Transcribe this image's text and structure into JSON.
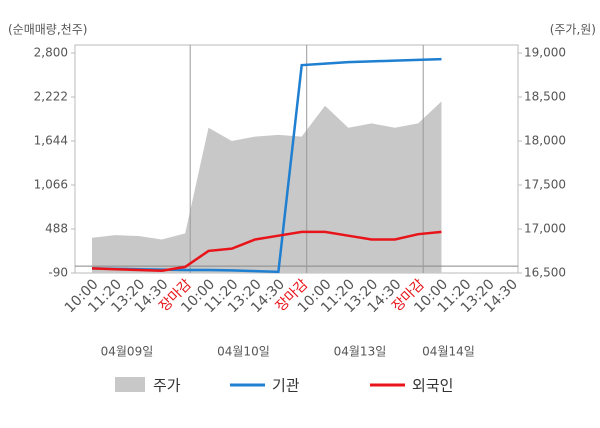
{
  "chart_data": {
    "type": "line",
    "y_label": "(순매매량,천주)",
    "y2_label": "(주가,원)",
    "categories": [
      "10:00",
      "11:20",
      "13:20",
      "14:30",
      "장마감",
      "10:00",
      "11:20",
      "13:20",
      "14:30",
      "장마감",
      "10:00",
      "11:20",
      "13:20",
      "14:30",
      "장마감",
      "10:00",
      "11:20",
      "13:20",
      "14:30"
    ],
    "dates": [
      "04월09일",
      "04월10일",
      "04월13일",
      "04월14일"
    ],
    "ylim": [
      -90,
      2800
    ],
    "yticks": [
      -90,
      488,
      {
        "value": 1066,
        "label": "1,066"
      },
      {
        "value": 1644,
        "label": "1,644"
      },
      {
        "value": 2222,
        "label": "2,222"
      },
      {
        "value": 2800,
        "label": "2,800"
      }
    ],
    "y2lim": [
      16500,
      19000
    ],
    "y2ticks": [
      {
        "value": 16500,
        "label": "16,500"
      },
      {
        "value": 17000,
        "label": "17,000"
      },
      {
        "value": 17500,
        "label": "17,500"
      },
      {
        "value": 18000,
        "label": "18,000"
      },
      {
        "value": 18500,
        "label": "18,500"
      },
      {
        "value": 19000,
        "label": "19,000"
      }
    ],
    "close_label_color": "#e8141a",
    "series": [
      {
        "name": "주가",
        "style": "area",
        "axis": "y2",
        "color": "#c8c8c8",
        "values": [
          16900,
          16930,
          16920,
          16880,
          16950,
          18150,
          18000,
          18050,
          18070,
          18050,
          18400,
          18150,
          18200,
          18150,
          18200,
          18450,
          null,
          null,
          null
        ]
      },
      {
        "name": "기관",
        "style": "line",
        "color": "#1f7fd0",
        "values": [
          -30,
          -35,
          -40,
          -45,
          -50,
          -50,
          -55,
          -65,
          -75,
          2640,
          2660,
          2680,
          2690,
          2700,
          2710,
          2720,
          null,
          null,
          null
        ]
      },
      {
        "name": "외국인",
        "style": "line",
        "color": "#e8141a",
        "values": [
          -30,
          -40,
          -50,
          -60,
          -10,
          200,
          230,
          350,
          400,
          450,
          450,
          400,
          350,
          350,
          420,
          450,
          null,
          null,
          null
        ]
      }
    ]
  }
}
